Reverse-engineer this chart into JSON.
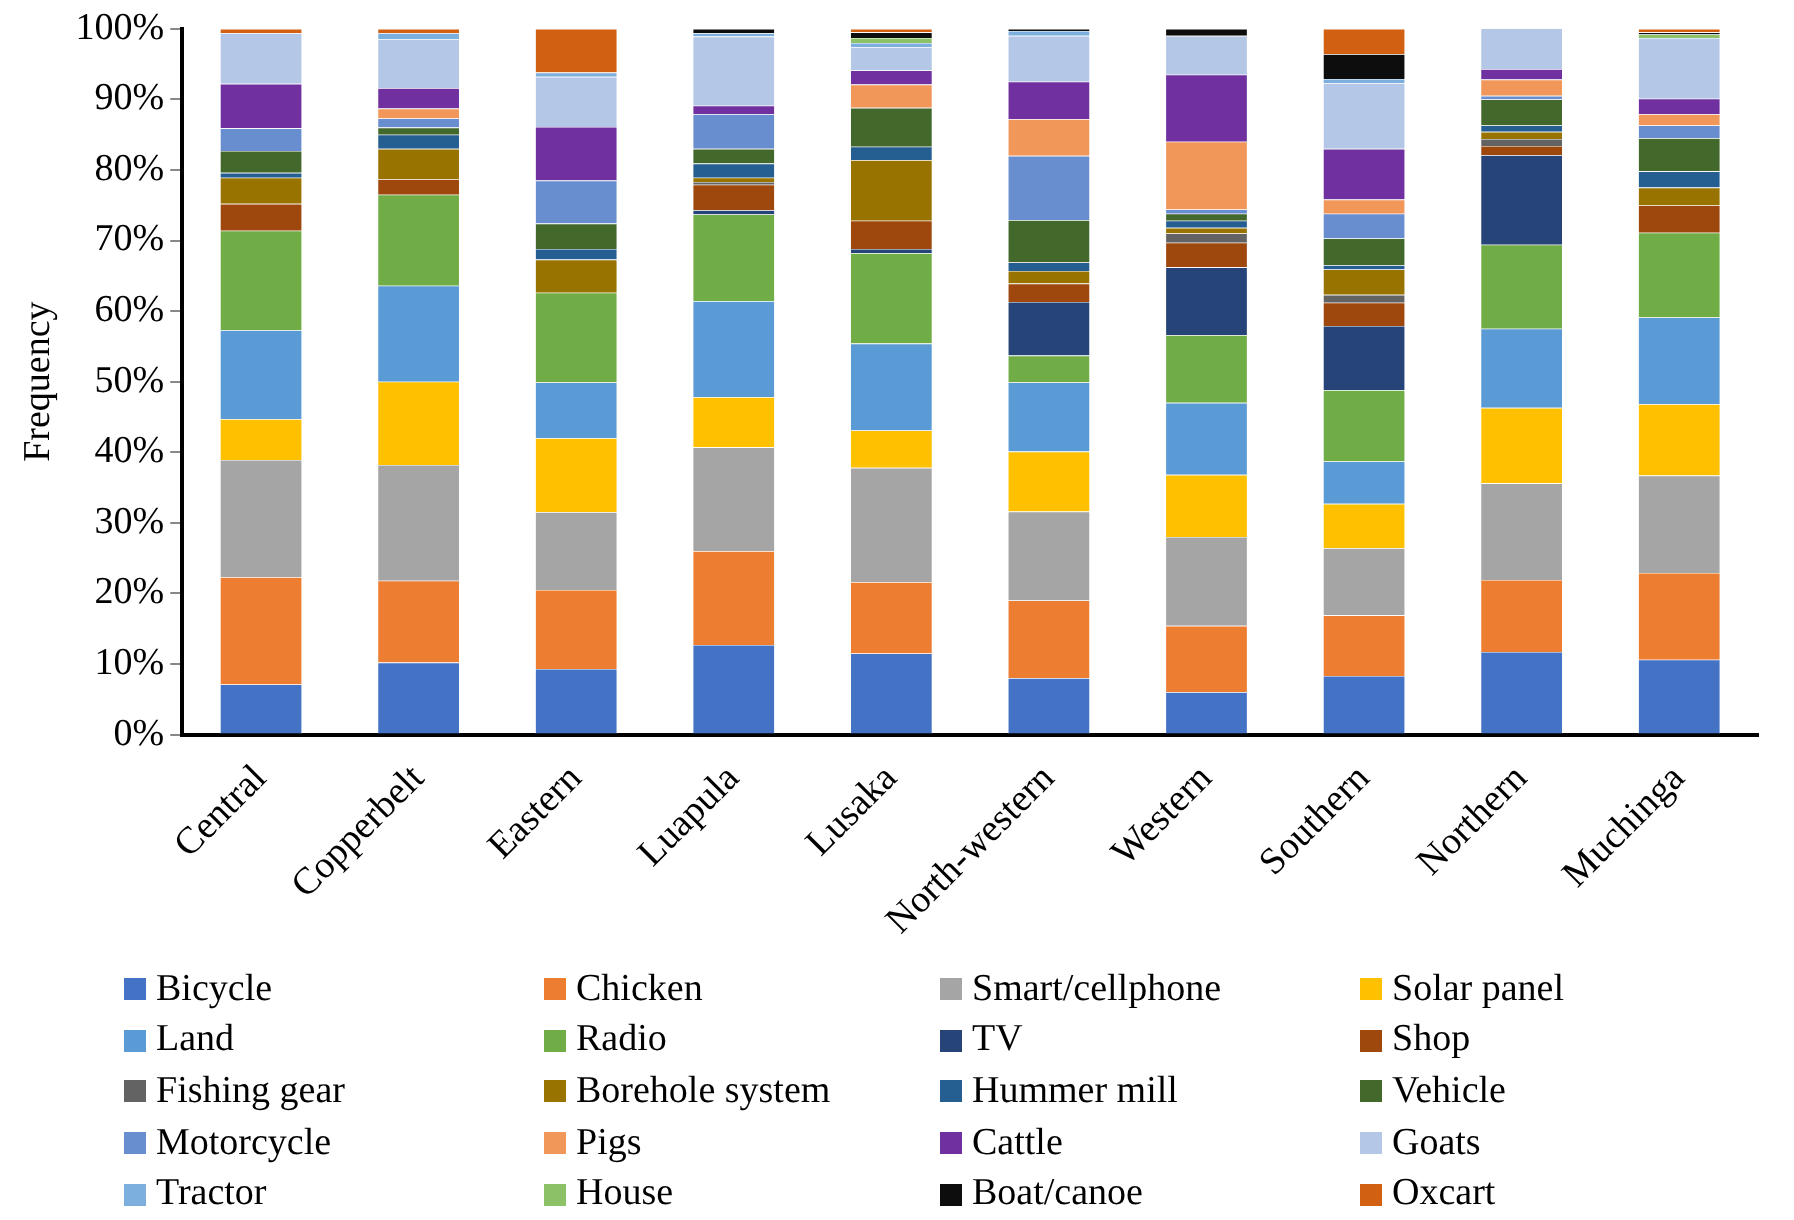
{
  "chart_data": {
    "type": "bar",
    "stacked": true,
    "ylabel": "Frequency",
    "grid": false,
    "legend": "bottom",
    "categories": [
      "Central",
      "Copperbelt",
      "Eastern",
      "Luapula",
      "Lusaka",
      "North-western",
      "Western",
      "Southern",
      "Northern",
      "Muchinga"
    ],
    "ylim": [
      0,
      100
    ],
    "yticks": [
      {
        "value": 0,
        "label": "0%"
      },
      {
        "value": 10,
        "label": "10%"
      },
      {
        "value": 20,
        "label": "20%"
      },
      {
        "value": 30,
        "label": "30%"
      },
      {
        "value": 40,
        "label": "40%"
      },
      {
        "value": 50,
        "label": "50%"
      },
      {
        "value": 60,
        "label": "60%"
      },
      {
        "value": 70,
        "label": "70%"
      },
      {
        "value": 80,
        "label": "80%"
      },
      {
        "value": 90,
        "label": "90%"
      },
      {
        "value": 100,
        "label": "100%"
      }
    ],
    "series": [
      {
        "name": "Bicycle",
        "color": "#4472c4",
        "values": [
          7.1,
          10.2,
          9.3,
          12.7,
          11.5,
          8.0,
          6.0,
          8.3,
          11.7,
          10.6
        ]
      },
      {
        "name": "Chicken",
        "color": "#ed7d31",
        "values": [
          15.2,
          11.6,
          11.2,
          13.3,
          10.1,
          11.0,
          9.4,
          8.6,
          10.2,
          12.3
        ]
      },
      {
        "name": "Smart/cellphone",
        "color": "#a5a5a5",
        "values": [
          16.6,
          16.4,
          11.0,
          14.7,
          16.2,
          12.6,
          12.6,
          9.5,
          13.7,
          13.8
        ]
      },
      {
        "name": "Solar panel",
        "color": "#ffc000",
        "values": [
          5.8,
          11.8,
          10.5,
          7.1,
          5.3,
          8.5,
          8.8,
          6.3,
          10.7,
          10.1
        ]
      },
      {
        "name": "Land",
        "color": "#5b9bd5",
        "values": [
          12.6,
          13.6,
          7.9,
          13.6,
          12.3,
          9.8,
          10.2,
          6.0,
          11.2,
          12.3
        ]
      },
      {
        "name": "Radio",
        "color": "#70ad47",
        "values": [
          14.1,
          12.9,
          12.7,
          12.3,
          12.8,
          3.8,
          9.6,
          10.1,
          11.9,
          12.0
        ]
      },
      {
        "name": "TV",
        "color": "#264478",
        "values": [
          0,
          0,
          0,
          0.6,
          0.6,
          7.6,
          9.6,
          9.1,
          12.7,
          0
        ]
      },
      {
        "name": "Shop",
        "color": "#9e480e",
        "values": [
          3.8,
          2.2,
          0,
          3.6,
          4.0,
          2.6,
          3.5,
          3.3,
          1.3,
          3.9
        ]
      },
      {
        "name": "Fishing gear",
        "color": "#636363",
        "values": [
          0,
          0,
          0,
          0.4,
          0,
          0,
          1.3,
          1.1,
          1.0,
          0
        ]
      },
      {
        "name": "Borehole system",
        "color": "#997300",
        "values": [
          3.7,
          4.3,
          4.7,
          0.6,
          8.6,
          1.8,
          0.8,
          3.6,
          1.0,
          2.5
        ]
      },
      {
        "name": "Hummer mill",
        "color": "#255e91",
        "values": [
          0.7,
          2.0,
          1.5,
          2.0,
          1.9,
          1.2,
          1.0,
          0.6,
          0.9,
          2.3
        ]
      },
      {
        "name": "Vehicle",
        "color": "#43682b",
        "values": [
          3.1,
          1.0,
          3.6,
          2.1,
          5.5,
          6.0,
          1.0,
          3.8,
          3.7,
          4.7
        ]
      },
      {
        "name": "Motorcycle",
        "color": "#698ed0",
        "values": [
          3.2,
          1.3,
          6.1,
          4.9,
          0,
          9.1,
          0.6,
          3.5,
          0.5,
          1.8
        ]
      },
      {
        "name": "Pigs",
        "color": "#f1975a",
        "values": [
          0,
          1.4,
          0,
          0,
          3.3,
          5.2,
          9.6,
          2.0,
          2.3,
          1.6
        ]
      },
      {
        "name": "Cattle",
        "color": "#7030a0",
        "values": [
          6.3,
          2.9,
          7.6,
          1.2,
          2.0,
          5.3,
          9.5,
          7.2,
          1.5,
          2.2
        ]
      },
      {
        "name": "Goats",
        "color": "#b4c7e7",
        "values": [
          7.2,
          6.9,
          7.1,
          9.8,
          3.3,
          6.5,
          5.5,
          9.3,
          5.8,
          8.6
        ]
      },
      {
        "name": "Tractor",
        "color": "#7cafdd",
        "values": [
          0,
          0.9,
          0.6,
          0.5,
          0.6,
          0.7,
          0,
          0.6,
          0,
          0
        ]
      },
      {
        "name": "House",
        "color": "#8cc168",
        "values": [
          0,
          0,
          0,
          0,
          0.7,
          0,
          0,
          0,
          0,
          0.5
        ]
      },
      {
        "name": "Boat/canoe",
        "color": "#0d0d0d",
        "values": [
          0,
          0,
          0,
          0.6,
          0.8,
          0.3,
          1.0,
          3.5,
          0,
          0.3
        ]
      },
      {
        "name": "Oxcart",
        "color": "#d26012",
        "values": [
          0.6,
          0.6,
          6.2,
          0,
          0.5,
          0,
          0,
          3.6,
          0,
          0.5
        ]
      }
    ]
  }
}
